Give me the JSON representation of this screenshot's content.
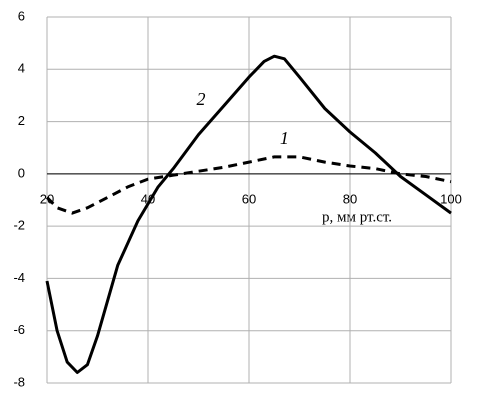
{
  "chart_data": {
    "type": "line",
    "xlabel": "p, мм рт.ст.",
    "xlim": [
      20,
      100
    ],
    "xticks": [
      20,
      40,
      60,
      80,
      100
    ],
    "ylim": [
      -8,
      6
    ],
    "yticks": [
      -8,
      -6,
      -4,
      -2,
      0,
      2,
      4,
      6
    ],
    "grid": true,
    "series": [
      {
        "name": "1",
        "color": "#000000",
        "dash": true,
        "x": [
          20,
          22,
          25,
          28,
          32,
          36,
          40,
          45,
          50,
          55,
          60,
          65,
          70,
          75,
          80,
          85,
          90,
          95,
          100
        ],
        "values": [
          -0.9,
          -1.3,
          -1.5,
          -1.3,
          -0.9,
          -0.5,
          -0.2,
          -0.05,
          0.1,
          0.25,
          0.45,
          0.65,
          0.65,
          0.45,
          0.3,
          0.2,
          0.0,
          -0.1,
          -0.3
        ]
      },
      {
        "name": "2",
        "color": "#000000",
        "dash": false,
        "x": [
          20,
          22,
          24,
          26,
          28,
          30,
          34,
          38,
          42,
          45,
          50,
          55,
          60,
          63,
          65,
          67,
          70,
          75,
          80,
          85,
          90,
          95,
          100
        ],
        "values": [
          -4.1,
          -6,
          -7.2,
          -7.6,
          -7.3,
          -6.2,
          -3.5,
          -1.8,
          -0.5,
          0.2,
          1.5,
          2.6,
          3.7,
          4.3,
          4.5,
          4.4,
          3.7,
          2.5,
          1.6,
          0.8,
          -0.1,
          -0.8,
          -1.5
        ]
      }
    ]
  }
}
